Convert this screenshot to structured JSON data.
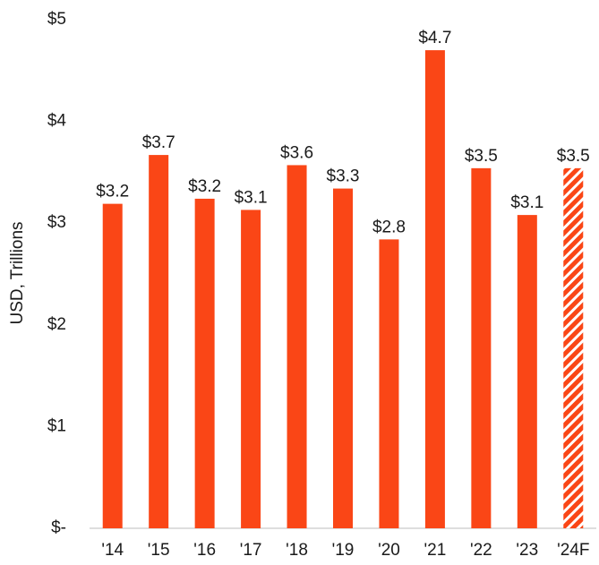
{
  "chart_data": {
    "type": "bar",
    "y_label": "USD, Trillions",
    "categories": [
      "'14",
      "'15",
      "'16",
      "'17",
      "'18",
      "'19",
      "'20",
      "'21",
      "'22",
      "'23",
      "'24F"
    ],
    "values": [
      3.19,
      3.67,
      3.24,
      3.13,
      3.57,
      3.34,
      2.84,
      4.7,
      3.54,
      3.08,
      3.54
    ],
    "value_labels": [
      "$3.2",
      "$3.7",
      "$3.2",
      "$3.1",
      "$3.6",
      "$3.3",
      "$2.8",
      "$4.7",
      "$3.5",
      "$3.1",
      "$3.5"
    ],
    "patterns": [
      "solid",
      "solid",
      "solid",
      "solid",
      "solid",
      "solid",
      "solid",
      "solid",
      "solid",
      "solid",
      "hatched"
    ],
    "color": "#fa4616",
    "ylim": [
      0,
      5
    ],
    "yticks": [
      {
        "value": 0,
        "label": "$-"
      },
      {
        "value": 1,
        "label": "$1"
      },
      {
        "value": 2,
        "label": "$2"
      },
      {
        "value": 3,
        "label": "$3"
      },
      {
        "value": 4,
        "label": "$4"
      },
      {
        "value": 5,
        "label": "$5"
      }
    ],
    "grid": false
  }
}
